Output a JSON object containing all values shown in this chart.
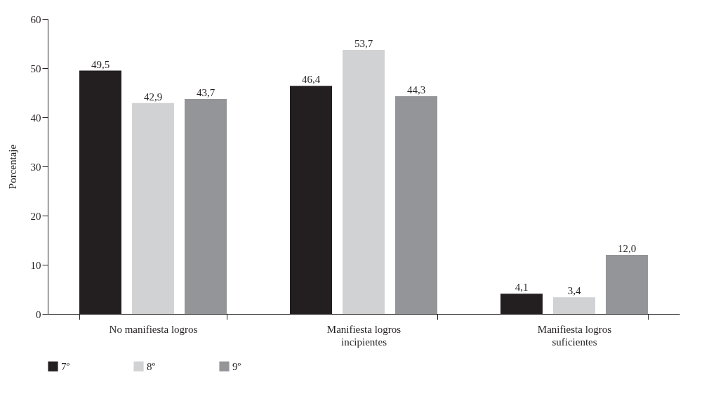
{
  "chart_data": {
    "type": "bar",
    "ylabel": "Porcentaje",
    "categories": [
      "No manifiesta logros",
      "Manifiesta logros incipientes",
      "Manifiesta logros suficientes"
    ],
    "series": [
      {
        "name": "7º",
        "color": "#231f20",
        "values": [
          49.5,
          46.4,
          4.1
        ],
        "value_labels": [
          "49,5",
          "46,4",
          "4,1"
        ]
      },
      {
        "name": "8º",
        "color": "#d1d2d4",
        "values": [
          42.9,
          53.7,
          3.4
        ],
        "value_labels": [
          "42,9",
          "53,7",
          "3,4"
        ]
      },
      {
        "name": "9º",
        "color": "#939598",
        "values": [
          43.7,
          44.3,
          12.0
        ],
        "value_labels": [
          "43,7",
          "44,3",
          "12,0"
        ]
      }
    ],
    "ylim": [
      0,
      60
    ],
    "yticks": [
      0,
      10,
      20,
      30,
      40,
      50,
      60
    ],
    "grid": false,
    "legend": "bottom"
  }
}
